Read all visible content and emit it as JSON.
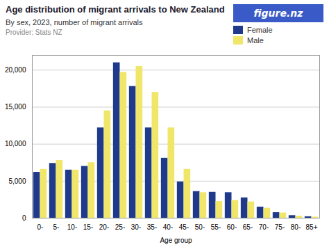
{
  "chart_data": {
    "type": "bar",
    "title": "Age distribution of migrant arrivals to New Zealand",
    "subtitle": "By sex, 2023, number of migrant arrivals",
    "annotations": [
      "Provider: Stats NZ",
      "figure.nz"
    ],
    "xlabel": "Age group",
    "categories": [
      "0-",
      "5-",
      "10-",
      "15-",
      "20-",
      "25-",
      "30-",
      "35-",
      "40-",
      "45-",
      "50-",
      "55-",
      "60-",
      "65-",
      "70-",
      "75-",
      "80-",
      "85+"
    ],
    "series": [
      {
        "name": "Female",
        "color": "#1f3a8a",
        "values": [
          6200,
          7400,
          6500,
          7000,
          12200,
          21000,
          17800,
          12200,
          8100,
          4900,
          3600,
          3500,
          3450,
          2750,
          1500,
          750,
          350,
          200
        ]
      },
      {
        "name": "Male",
        "color": "#f0e76a",
        "values": [
          6600,
          7800,
          6500,
          7500,
          14500,
          19700,
          20500,
          17000,
          12200,
          6600,
          3450,
          2250,
          2400,
          2200,
          1350,
          700,
          280,
          150
        ]
      }
    ],
    "ylim": [
      0,
      22000
    ],
    "yticks": [
      0,
      {
        "value": 5000,
        "label": "5,000"
      },
      {
        "value": 10000,
        "label": "10,000"
      },
      {
        "value": 15000,
        "label": "15,000"
      },
      {
        "value": 20000,
        "label": "20,000"
      }
    ],
    "grid": true,
    "legend": "upper right"
  }
}
